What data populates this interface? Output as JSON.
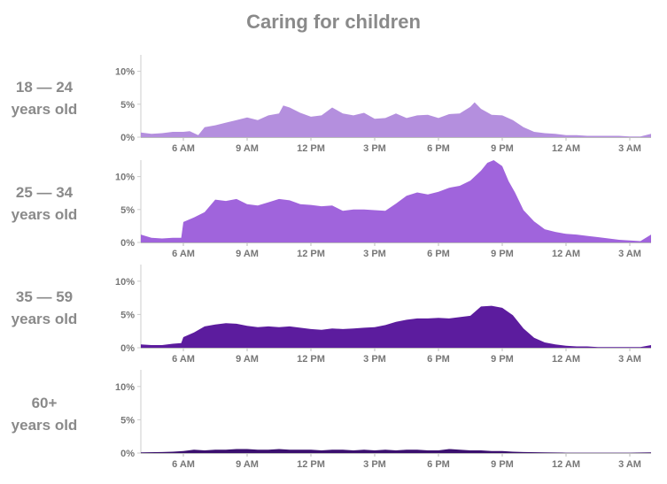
{
  "chart_data": {
    "type": "area",
    "title": "Caring for children",
    "x_unit": "hours after 4:00 AM",
    "xlim": [
      0,
      24
    ],
    "ylim": [
      0,
      12.5
    ],
    "y_ticks": [
      {
        "value": 0,
        "label": "0%"
      },
      {
        "value": 5,
        "label": "5%"
      },
      {
        "value": 10,
        "label": "10%"
      }
    ],
    "x_ticks": [
      {
        "value": 2,
        "label": "6 AM"
      },
      {
        "value": 5,
        "label": "9 AM"
      },
      {
        "value": 8,
        "label": "12 PM"
      },
      {
        "value": 11,
        "label": "3 PM"
      },
      {
        "value": 14,
        "label": "6 PM"
      },
      {
        "value": 17,
        "label": "9 PM"
      },
      {
        "value": 20,
        "label": "12 AM"
      },
      {
        "value": 23,
        "label": "3 AM"
      }
    ],
    "series": [
      {
        "name": "18 — 24 years old",
        "label_line1": "18 — 24",
        "label_line2": "years old",
        "color": "#b48fde",
        "x": [
          0,
          0.5,
          1,
          1.5,
          2,
          2.3,
          2.7,
          3,
          3.5,
          4,
          4.5,
          5,
          5.5,
          6,
          6.5,
          6.7,
          7,
          7.5,
          8,
          8.5,
          9,
          9.5,
          10,
          10.5,
          11,
          11.5,
          12,
          12.5,
          13,
          13.5,
          14,
          14.5,
          15,
          15.5,
          15.7,
          16,
          16.5,
          17,
          17.5,
          18,
          18.5,
          19,
          19.5,
          20,
          20.5,
          21,
          21.5,
          22,
          22.5,
          23,
          23.5,
          24
        ],
        "y": [
          0.7,
          0.5,
          0.6,
          0.8,
          0.8,
          0.9,
          0.3,
          1.5,
          1.8,
          2.2,
          2.6,
          3,
          2.6,
          3.3,
          3.6,
          4.8,
          4.5,
          3.7,
          3.1,
          3.3,
          4.5,
          3.6,
          3.3,
          3.7,
          2.8,
          2.9,
          3.6,
          2.9,
          3.3,
          3.4,
          2.9,
          3.5,
          3.6,
          4.6,
          5.3,
          4.3,
          3.4,
          3.3,
          2.6,
          1.5,
          0.8,
          0.6,
          0.5,
          0.3,
          0.3,
          0.2,
          0.2,
          0.2,
          0.2,
          0.1,
          0.1,
          0.5
        ]
      },
      {
        "name": "25 — 34 years old",
        "label_line1": "25 — 34",
        "label_line2": "years old",
        "color": "#a064dc",
        "x": [
          0,
          0.5,
          1,
          1.5,
          1.9,
          2,
          2.5,
          3,
          3.5,
          4,
          4.5,
          5,
          5.5,
          6,
          6.5,
          7,
          7.5,
          8,
          8.5,
          9,
          9.5,
          10,
          10.5,
          11,
          11.5,
          12,
          12.5,
          13,
          13.5,
          14,
          14.5,
          15,
          15.5,
          16,
          16.3,
          16.6,
          17,
          17.3,
          17.6,
          18,
          18.5,
          19,
          19.5,
          20,
          20.5,
          21,
          21.5,
          22,
          22.5,
          23,
          23.5,
          24
        ],
        "y": [
          1.2,
          0.7,
          0.6,
          0.7,
          0.7,
          3.1,
          3.8,
          4.6,
          6.5,
          6.3,
          6.6,
          5.8,
          5.6,
          6.1,
          6.6,
          6.4,
          5.8,
          5.7,
          5.5,
          5.6,
          4.8,
          5,
          5,
          4.9,
          4.8,
          5.9,
          7.1,
          7.6,
          7.3,
          7.7,
          8.3,
          8.6,
          9.4,
          10.9,
          12.1,
          12.5,
          11.6,
          9.3,
          7.6,
          4.9,
          3.2,
          2,
          1.6,
          1.3,
          1.2,
          1,
          0.8,
          0.6,
          0.4,
          0.3,
          0.2,
          1.2
        ]
      },
      {
        "name": "35 — 59 years old",
        "label_line1": "35 — 59",
        "label_line2": "years old",
        "color": "#5c1c9e",
        "x": [
          0,
          0.5,
          1,
          1.5,
          1.9,
          2,
          2.5,
          3,
          3.5,
          4,
          4.5,
          5,
          5.5,
          6,
          6.5,
          7,
          7.5,
          8,
          8.5,
          9,
          9.5,
          10,
          10.5,
          11,
          11.5,
          12,
          12.5,
          13,
          13.5,
          14,
          14.5,
          15,
          15.5,
          16,
          16.5,
          17,
          17.5,
          18,
          18.5,
          19,
          19.5,
          20,
          20.5,
          21,
          21.5,
          22,
          22.5,
          23,
          23.5,
          24
        ],
        "y": [
          0.5,
          0.4,
          0.4,
          0.6,
          0.7,
          1.6,
          2.3,
          3.2,
          3.5,
          3.7,
          3.6,
          3.3,
          3.1,
          3.2,
          3.1,
          3.2,
          3,
          2.8,
          2.7,
          2.9,
          2.8,
          2.9,
          3,
          3.1,
          3.4,
          3.9,
          4.2,
          4.4,
          4.4,
          4.5,
          4.4,
          4.6,
          4.8,
          6.2,
          6.3,
          6,
          4.9,
          2.9,
          1.5,
          0.8,
          0.5,
          0.3,
          0.2,
          0.2,
          0.1,
          0.1,
          0.1,
          0.1,
          0.1,
          0.4
        ]
      },
      {
        "name": "60+ years old",
        "label_line1": "60+",
        "label_line2": "years old",
        "color": "#3a0f6e",
        "x": [
          0,
          1,
          1.5,
          2,
          2.5,
          3,
          3.5,
          4,
          4.5,
          5,
          5.5,
          6,
          6.5,
          7,
          7.5,
          8,
          8.5,
          9,
          9.5,
          10,
          10.5,
          11,
          11.5,
          12,
          12.5,
          13,
          13.5,
          14,
          14.5,
          15,
          15.5,
          16,
          16.5,
          17,
          17.5,
          18,
          19,
          20,
          21,
          22,
          23,
          24
        ],
        "y": [
          0.1,
          0.15,
          0.2,
          0.3,
          0.5,
          0.4,
          0.5,
          0.5,
          0.6,
          0.6,
          0.5,
          0.5,
          0.6,
          0.5,
          0.5,
          0.5,
          0.4,
          0.5,
          0.5,
          0.4,
          0.5,
          0.4,
          0.5,
          0.4,
          0.5,
          0.5,
          0.4,
          0.4,
          0.6,
          0.5,
          0.4,
          0.4,
          0.3,
          0.3,
          0.2,
          0.15,
          0.1,
          0.05,
          0.05,
          0.05,
          0.05,
          0.1
        ]
      }
    ]
  }
}
